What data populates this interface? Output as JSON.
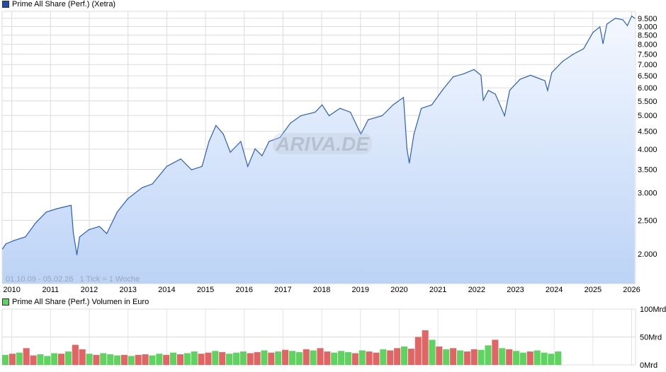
{
  "price_legend": {
    "label": "Prime All Share (Perf.) (Xetra)",
    "color": "#1f4fa8"
  },
  "volume_legend": {
    "label": "Prime All Share (Perf.) Volumen in Euro",
    "color": "#5fd35f"
  },
  "range_note": "01.10.09 - 05.02.26   1 Tick = 1 Woche",
  "watermark": "ARIVA.DE",
  "chart_data": [
    {
      "type": "area",
      "scale": "log",
      "grid": true,
      "line_color": "#2a5fc0",
      "ylim": [
        1645,
        9950
      ],
      "xlim": [
        2009.75,
        2026.1
      ],
      "x_ticks": [
        "2010",
        "2011",
        "2012",
        "2013",
        "2014",
        "2015",
        "2016",
        "2017",
        "2018",
        "2019",
        "2020",
        "2021",
        "2022",
        "2023",
        "2024",
        "2025",
        "2026"
      ],
      "y_ticks": [
        "2.000",
        "2.500",
        "3.000",
        "3.500",
        "4.000",
        "4.500",
        "5.000",
        "5.500",
        "6.000",
        "6.500",
        "7.000",
        "7.500",
        "8.000",
        "8.500",
        "9.000",
        "9.500"
      ],
      "y_tick_values": [
        2000,
        2500,
        3000,
        3500,
        4000,
        4500,
        5000,
        5500,
        6000,
        6500,
        7000,
        7500,
        8000,
        8500,
        9000,
        9500
      ],
      "x": [
        2009.76,
        2009.85,
        2010.07,
        2010.35,
        2010.62,
        2010.89,
        2011.17,
        2011.53,
        2011.59,
        2011.68,
        2011.75,
        2011.99,
        2012.26,
        2012.45,
        2012.72,
        2012.99,
        2013.36,
        2013.63,
        2014.0,
        2014.36,
        2014.64,
        2014.91,
        2015.09,
        2015.27,
        2015.46,
        2015.64,
        2015.91,
        2016.09,
        2016.28,
        2016.46,
        2016.64,
        2016.92,
        2017.19,
        2017.46,
        2017.83,
        2018.01,
        2018.19,
        2018.47,
        2018.74,
        2019.01,
        2019.2,
        2019.56,
        2019.84,
        2020.11,
        2020.2,
        2020.26,
        2020.38,
        2020.57,
        2020.84,
        2021.11,
        2021.39,
        2021.66,
        2021.93,
        2022.11,
        2022.17,
        2022.3,
        2022.48,
        2022.72,
        2022.85,
        2023.12,
        2023.39,
        2023.76,
        2023.83,
        2023.94,
        2024.22,
        2024.49,
        2024.76,
        2025.0,
        2025.18,
        2025.26,
        2025.36,
        2025.58,
        2025.77,
        2025.89,
        2026.0,
        2026.08
      ],
      "values": [
        2070,
        2140,
        2190,
        2240,
        2460,
        2640,
        2700,
        2760,
        2290,
        1990,
        2240,
        2350,
        2400,
        2290,
        2640,
        2880,
        3100,
        3180,
        3570,
        3750,
        3490,
        3570,
        4210,
        4680,
        4420,
        3920,
        4210,
        3570,
        4010,
        3830,
        4210,
        4320,
        4750,
        4990,
        5110,
        5360,
        4990,
        5240,
        5110,
        4420,
        4860,
        4990,
        5360,
        5630,
        4010,
        3650,
        4420,
        5240,
        5360,
        5900,
        6450,
        6580,
        6770,
        6520,
        5530,
        5900,
        5760,
        4990,
        5900,
        6350,
        6520,
        6290,
        5900,
        6640,
        7150,
        7490,
        7770,
        8650,
        8980,
        8040,
        9140,
        9500,
        9410,
        9050,
        9640,
        9500
      ]
    },
    {
      "type": "bar",
      "ylim": [
        0,
        100
      ],
      "y_ticks": [
        "0Mrd",
        "50Mrd",
        "100Mrd"
      ],
      "y_tick_values": [
        0,
        50,
        100
      ],
      "up_color": "#5fd35f",
      "down_color": "#e06666",
      "x_range": [
        2009.75,
        2024.2
      ],
      "values": [
        18,
        20,
        22,
        30,
        17,
        19,
        16,
        21,
        20,
        24,
        36,
        28,
        20,
        18,
        21,
        19,
        17,
        18,
        16,
        18,
        19,
        17,
        20,
        18,
        22,
        19,
        21,
        24,
        20,
        22,
        25,
        23,
        20,
        22,
        24,
        21,
        23,
        26,
        22,
        24,
        27,
        25,
        23,
        28,
        26,
        30,
        24,
        22,
        25,
        23,
        21,
        26,
        24,
        22,
        28,
        26,
        30,
        33,
        29,
        50,
        62,
        45,
        33,
        28,
        30,
        26,
        24,
        28,
        27,
        35,
        45,
        30,
        28,
        25,
        22,
        24,
        26,
        22,
        20,
        24
      ],
      "directions": "grgrrgggrgrrgrgggrgrrggrgrggrrgrgggrrgrgrggrgrrgggrgrrgrrgrrrgrgrgrrggrgrggrgg"
    }
  ]
}
